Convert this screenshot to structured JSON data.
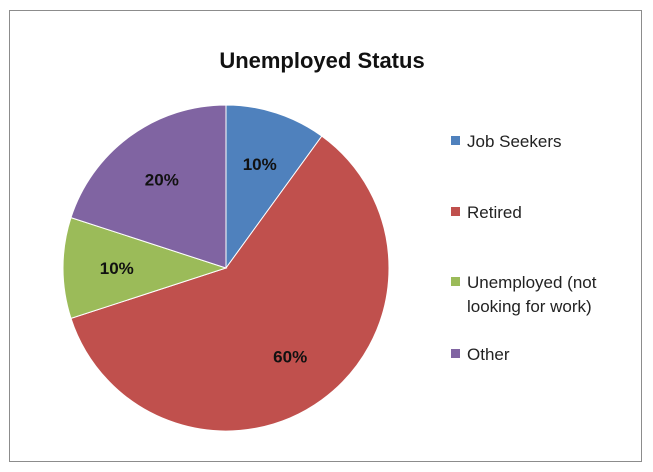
{
  "chart_data": {
    "type": "pie",
    "title": "Unemployed Status",
    "slices": [
      {
        "label": "Job Seekers",
        "value": 10,
        "label_text": "10%",
        "color": "#4F81BD"
      },
      {
        "label": "Retired",
        "value": 60,
        "label_text": "60%",
        "color": "#C0504D"
      },
      {
        "label": "Unemployed (not looking for work)",
        "value": 10,
        "label_text": "10%",
        "color": "#9BBB59"
      },
      {
        "label": "Other",
        "value": 20,
        "label_text": "20%",
        "color": "#8064A2"
      }
    ],
    "legend": {
      "placement": "right",
      "items": [
        {
          "label_lines": [
            "Job Seekers"
          ],
          "color": "#4F81BD"
        },
        {
          "label_lines": [
            "Retired"
          ],
          "color": "#C0504D"
        },
        {
          "label_lines": [
            "Unemployed (not",
            "looking for work)"
          ],
          "color": "#9BBB59"
        },
        {
          "label_lines": [
            "Other"
          ],
          "color": "#8064A2"
        }
      ]
    }
  }
}
